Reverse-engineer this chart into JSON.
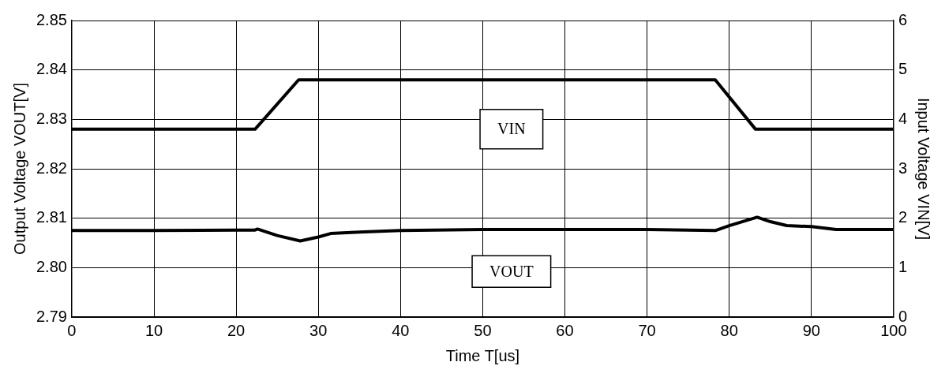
{
  "chart_data": {
    "type": "line",
    "xlabel": "Time T[us]",
    "ylabel": "Output Voltage VOUT[V]",
    "y2label": "Input Voltage VIN[V]",
    "xlim": [
      0,
      100
    ],
    "xticks": [
      0,
      10,
      20,
      30,
      40,
      50,
      60,
      70,
      80,
      90,
      100
    ],
    "ylim": [
      2.79,
      2.85
    ],
    "yticks": [
      {
        "value": 2.79,
        "label": "2.79"
      },
      {
        "value": 2.8,
        "label": "2.80"
      },
      {
        "value": 2.81,
        "label": "2.81"
      },
      {
        "value": 2.82,
        "label": "2.82"
      },
      {
        "value": 2.83,
        "label": "2.83"
      },
      {
        "value": 2.84,
        "label": "2.84"
      },
      {
        "value": 2.85,
        "label": "2.85"
      }
    ],
    "y2lim": [
      0,
      6
    ],
    "y2ticks": [
      0,
      1,
      2,
      3,
      4,
      5,
      6
    ],
    "grid": true,
    "legend": false,
    "marker": "none",
    "line_style": "solid",
    "series": [
      {
        "name": "VIN",
        "color": "#000000",
        "axis": "y2",
        "x": [
          0,
          22.3,
          27.6,
          78.3,
          83.2,
          100
        ],
        "values": [
          3.8,
          3.8,
          4.8,
          4.8,
          3.8,
          3.8
        ]
      },
      {
        "name": "VOUT",
        "color": "#000000",
        "axis": "y",
        "x": [
          0,
          10,
          20,
          22.3,
          22.6,
          25,
          27.8,
          30,
          31.5,
          35,
          40,
          50,
          60,
          70,
          78.3,
          80,
          83.4,
          85,
          87,
          90,
          93,
          100
        ],
        "values": [
          2.8075,
          2.8075,
          2.8076,
          2.8076,
          2.8078,
          2.8065,
          2.8054,
          2.8062,
          2.8069,
          2.8072,
          2.8075,
          2.8077,
          2.8077,
          2.8077,
          2.8075,
          2.8085,
          2.8102,
          2.8093,
          2.8085,
          2.8083,
          2.8077,
          2.8077
        ]
      }
    ]
  }
}
